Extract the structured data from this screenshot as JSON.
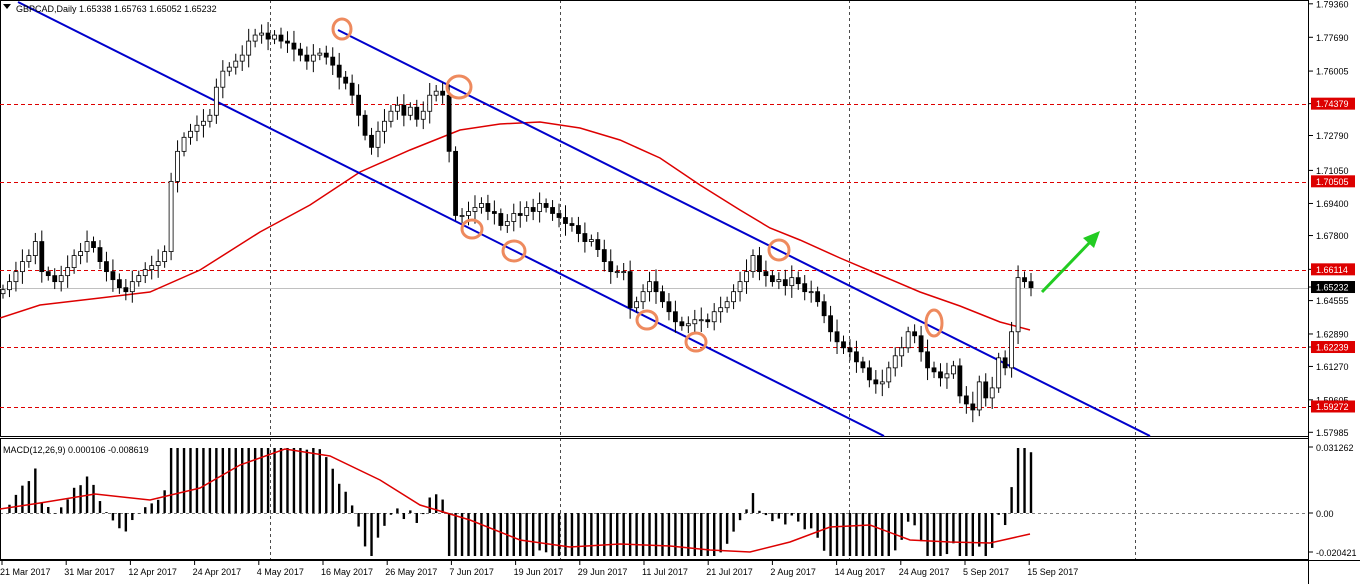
{
  "header": {
    "symbol_info": "GBPCAD,Daily  1.65338 1.65763 1.65052 1.65232"
  },
  "macd_header": {
    "label": "MACD(12,26,9) 0.000106 -0.008619"
  },
  "price_axis": {
    "ticks": [
      "1.79360",
      "1.77690",
      "1.76005",
      "1.74379",
      "1.72790",
      "1.71050",
      "1.69400",
      "1.67800",
      "1.66114",
      "1.65232",
      "1.64555",
      "1.62890",
      "1.62239",
      "1.61270",
      "1.59605",
      "1.59272",
      "1.57985"
    ],
    "values": [
      1.7936,
      1.7769,
      1.76005,
      1.74379,
      1.7279,
      1.7105,
      1.694,
      1.678,
      1.66114,
      1.65232,
      1.64555,
      1.6289,
      1.62239,
      1.6127,
      1.59605,
      1.59272,
      1.57985
    ],
    "red_boxed": [
      "1.74379",
      "1.70505",
      "1.66114",
      "1.62239",
      "1.59272"
    ],
    "current": "1.65232"
  },
  "red_labels": {
    "l1": "1.74379",
    "l2": "1.70505",
    "l3": "1.66114",
    "l4": "1.62239",
    "l5": "1.59272",
    "cur": "1.65232"
  },
  "macd_axis": {
    "ticks": [
      "0.031262",
      "0.00",
      "-0.020421"
    ]
  },
  "date_axis": {
    "labels": [
      "21 Mar 2017",
      "31 Mar 2017",
      "12 Apr 2017",
      "24 Apr 2017",
      "4 May 2017",
      "16 May 2017",
      "26 May 2017",
      "7 Jun 2017",
      "19 Jun 2017",
      "29 Jun 2017",
      "11 Jul 2017",
      "21 Jul 2017",
      "2 Aug 2017",
      "14 Aug 2017",
      "24 Aug 2017",
      "5 Sep 2017",
      "15 Sep 2017"
    ]
  },
  "colors": {
    "channel": "#0000cc",
    "ma": "#dd0000",
    "level": "#dd0000",
    "circle": "#ee8a5e",
    "arrow": "#22cc22",
    "candle": "#000000"
  },
  "chart_data": {
    "type": "candlestick",
    "title": "GBPCAD,Daily",
    "ylim": [
      1.578,
      1.7955
    ],
    "horizontal_levels": [
      1.74379,
      1.70505,
      1.66114,
      1.62239,
      1.59272
    ],
    "current_price": 1.65232,
    "close_series": [
      1.651,
      1.655,
      1.66,
      1.665,
      1.668,
      1.675,
      1.66,
      1.658,
      1.655,
      1.658,
      1.662,
      1.668,
      1.67,
      1.675,
      1.672,
      1.665,
      1.66,
      1.656,
      1.652,
      1.65,
      1.655,
      1.658,
      1.661,
      1.663,
      1.665,
      1.67,
      1.705,
      1.72,
      1.727,
      1.73,
      1.733,
      1.735,
      1.738,
      1.752,
      1.76,
      1.762,
      1.765,
      1.768,
      1.775,
      1.778,
      1.779,
      1.776,
      1.778,
      1.775,
      1.774,
      1.771,
      1.768,
      1.765,
      1.768,
      1.769,
      1.767,
      1.763,
      1.757,
      1.754,
      1.748,
      1.738,
      1.728,
      1.722,
      1.73,
      1.735,
      1.74,
      1.743,
      1.738,
      1.742,
      1.736,
      1.74,
      1.748,
      1.75,
      1.748,
      1.72,
      1.688,
      1.688,
      1.69,
      1.692,
      1.694,
      1.69,
      1.689,
      1.683,
      1.685,
      1.689,
      1.688,
      1.692,
      1.69,
      1.694,
      1.692,
      1.689,
      1.687,
      1.684,
      1.683,
      1.679,
      1.675,
      1.676,
      1.671,
      1.665,
      1.66,
      1.66,
      1.66,
      1.642,
      1.645,
      1.65,
      1.655,
      1.65,
      1.645,
      1.64,
      1.635,
      1.633,
      1.634,
      1.636,
      1.636,
      1.635,
      1.64,
      1.642,
      1.645,
      1.65,
      1.655,
      1.66,
      1.668,
      1.66,
      1.658,
      1.655,
      1.656,
      1.653,
      1.657,
      1.654,
      1.65,
      1.65,
      1.645,
      1.638,
      1.63,
      1.625,
      1.622,
      1.62,
      1.615,
      1.612,
      1.606,
      1.604,
      1.605,
      1.612,
      1.618,
      1.622,
      1.63,
      1.628,
      1.62,
      1.612,
      1.61,
      1.607,
      1.609,
      1.613,
      1.598,
      1.594,
      1.591,
      1.605,
      1.597,
      1.602,
      1.617,
      1.612,
      1.63,
      1.657,
      1.655,
      1.652
    ]
  }
}
